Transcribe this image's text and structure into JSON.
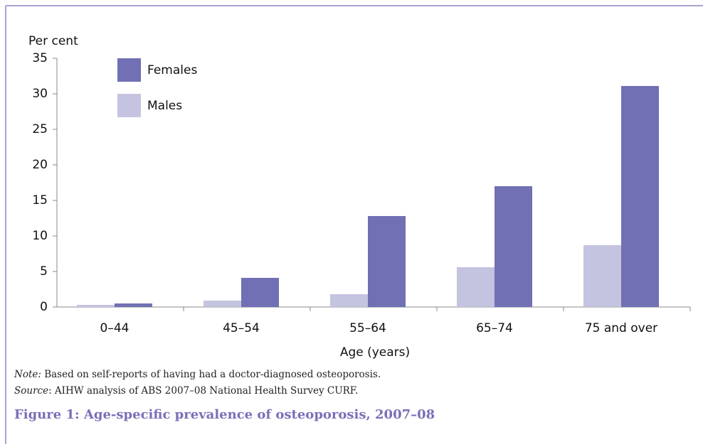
{
  "chart_data": {
    "type": "bar",
    "y_label": "Per cent",
    "x_label": "Age (years)",
    "categories": [
      "0–44",
      "45–54",
      "55–64",
      "65–74",
      "75 and over"
    ],
    "series": [
      {
        "name": "Males",
        "color": "#c4c3e0",
        "values": [
          0.3,
          0.9,
          1.8,
          5.6,
          8.7
        ]
      },
      {
        "name": "Females",
        "color": "#7170b4",
        "values": [
          0.5,
          4.1,
          12.8,
          17.0,
          31.1
        ]
      }
    ],
    "legend_order": [
      "Females",
      "Males"
    ],
    "ylim": [
      0,
      35
    ],
    "yticks": [
      0,
      5,
      10,
      15,
      20,
      25,
      30,
      35
    ],
    "grid": false
  },
  "note": {
    "label": "Note:",
    "text": " Based on self-reports of having had a doctor-diagnosed osteoporosis."
  },
  "source": {
    "label": "Source",
    "text": ": AIHW analysis of ABS 2007–08 National Health Survey  CURF."
  },
  "caption": "Figure 1: Age-specific prevalence of osteoporosis, 2007–08"
}
